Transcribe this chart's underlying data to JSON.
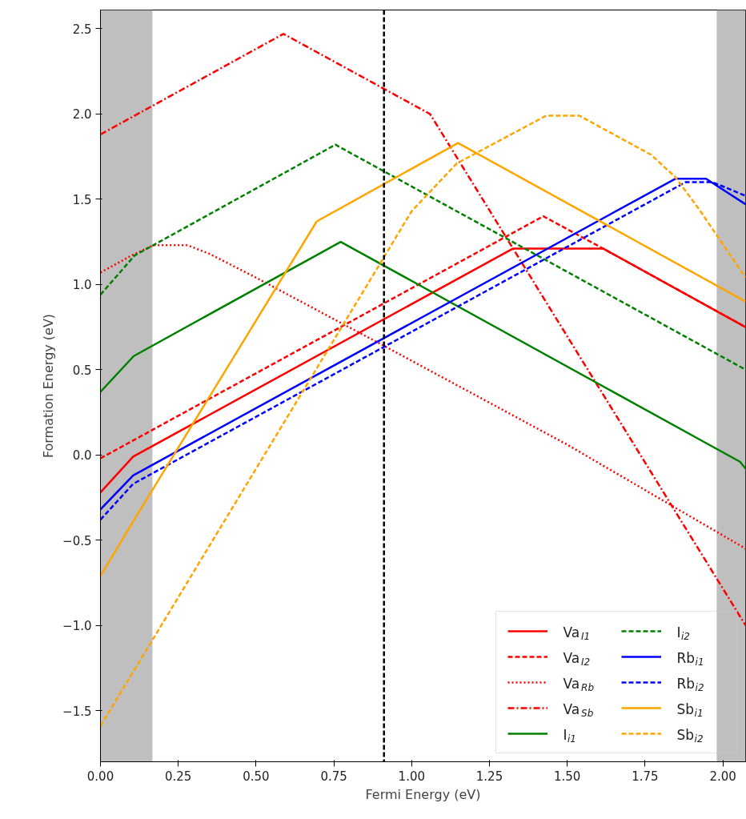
{
  "chart_data": {
    "type": "line",
    "xlabel": "Fermi Energy (eV)",
    "ylabel": "Formation Energy (eV)",
    "xlim": [
      0,
      2.073
    ],
    "ylim": [
      -1.8,
      2.61
    ],
    "xticks": [
      {
        "value": 0,
        "label": "0.00"
      },
      {
        "value": 0.25,
        "label": "0.25"
      },
      {
        "value": 0.5,
        "label": "0.50"
      },
      {
        "value": 0.75,
        "label": "0.75"
      },
      {
        "value": 1,
        "label": "1.00"
      },
      {
        "value": 1.25,
        "label": "1.25"
      },
      {
        "value": 1.5,
        "label": "1.50"
      },
      {
        "value": 1.75,
        "label": "1.75"
      },
      {
        "value": 2,
        "label": "2.00"
      }
    ],
    "yticks": [
      {
        "value": -1.5,
        "label": "−1.5"
      },
      {
        "value": -1,
        "label": "−1.0"
      },
      {
        "value": -0.5,
        "label": "−0.5"
      },
      {
        "value": 0,
        "label": "0.0"
      },
      {
        "value": 0.5,
        "label": "0.5"
      },
      {
        "value": 1,
        "label": "1.0"
      },
      {
        "value": 1.5,
        "label": "1.5"
      },
      {
        "value": 2,
        "label": "2.0"
      },
      {
        "value": 2.5,
        "label": "2.5"
      }
    ],
    "grid": false,
    "legend": "bottom right",
    "marker": "none",
    "bands": [
      {
        "axis": "x",
        "from": 0,
        "to": 0.167,
        "color": "#bfbfbf"
      },
      {
        "axis": "x",
        "from": 1.98,
        "to": 2.073,
        "color": "#bfbfbf"
      }
    ],
    "ref_lines": [
      {
        "axis": "x",
        "value": 0.911,
        "color": "#000000",
        "line_style": "dashed"
      }
    ],
    "series": [
      {
        "name": "Va$_{I1}$",
        "color": "#ff0000",
        "line_style": "solid",
        "x": [
          0,
          0.105,
          1.325,
          1.616,
          2.073
        ],
        "values": [
          -0.22,
          -0.01,
          1.21,
          1.21,
          0.75
        ]
      },
      {
        "name": "Va$_{I2}$",
        "color": "#ff0000",
        "line_style": "dashed",
        "x": [
          0,
          1.423,
          1.616,
          2.073
        ],
        "values": [
          -0.02,
          1.4,
          1.21,
          0.75
        ]
      },
      {
        "name": "Va$_{Rb}$",
        "color": "#ff0000",
        "line_style": "dotted",
        "x": [
          0,
          0.1,
          0.17,
          0.28,
          0.35,
          0.5,
          0.911,
          1.5,
          2.073
        ],
        "values": [
          1.07,
          1.17,
          1.23,
          1.23,
          1.18,
          1.04,
          0.64,
          0.06,
          -0.55
        ]
      },
      {
        "name": "Va$_{Sb}$",
        "color": "#ff0000",
        "line_style": "dashdot",
        "x": [
          0,
          0.588,
          1.059,
          2.073
        ],
        "values": [
          1.88,
          2.47,
          2.0,
          -1.0
        ]
      },
      {
        "name": "I$_{i1}$",
        "color": "#008000",
        "line_style": "solid",
        "x": [
          0,
          0.107,
          0.772,
          2.055,
          2.073
        ],
        "values": [
          0.37,
          0.58,
          1.25,
          -0.04,
          -0.08
        ]
      },
      {
        "name": "I$_{i2}$",
        "color": "#008000",
        "line_style": "dashed",
        "x": [
          0,
          0.11,
          0.755,
          2.073
        ],
        "values": [
          0.94,
          1.17,
          1.82,
          0.5
        ]
      },
      {
        "name": "Rb$_{i1}$",
        "color": "#0000ff",
        "line_style": "solid",
        "x": [
          0,
          0.105,
          1.847,
          1.946,
          2.073
        ],
        "values": [
          -0.32,
          -0.12,
          1.62,
          1.62,
          1.47
        ]
      },
      {
        "name": "Rb$_{i2}$",
        "color": "#0000ff",
        "line_style": "dashed",
        "x": [
          0,
          0.105,
          1.88,
          1.967,
          2.073
        ],
        "values": [
          -0.38,
          -0.17,
          1.6,
          1.6,
          1.52
        ]
      },
      {
        "name": "Sb$_{i1}$",
        "color": "#ffa500",
        "line_style": "solid",
        "x": [
          0,
          0.105,
          0.695,
          1.149,
          2.073
        ],
        "values": [
          -0.71,
          -0.39,
          1.37,
          1.83,
          0.9
        ]
      },
      {
        "name": "Sb$_{i2}$",
        "color": "#ffa500",
        "line_style": "dashed",
        "x": [
          0,
          0.911,
          1.0,
          1.145,
          1.432,
          1.539,
          1.77,
          1.847,
          1.924,
          2.073
        ],
        "values": [
          -1.59,
          1.16,
          1.43,
          1.71,
          1.99,
          1.99,
          1.76,
          1.63,
          1.44,
          1.04
        ]
      }
    ]
  }
}
